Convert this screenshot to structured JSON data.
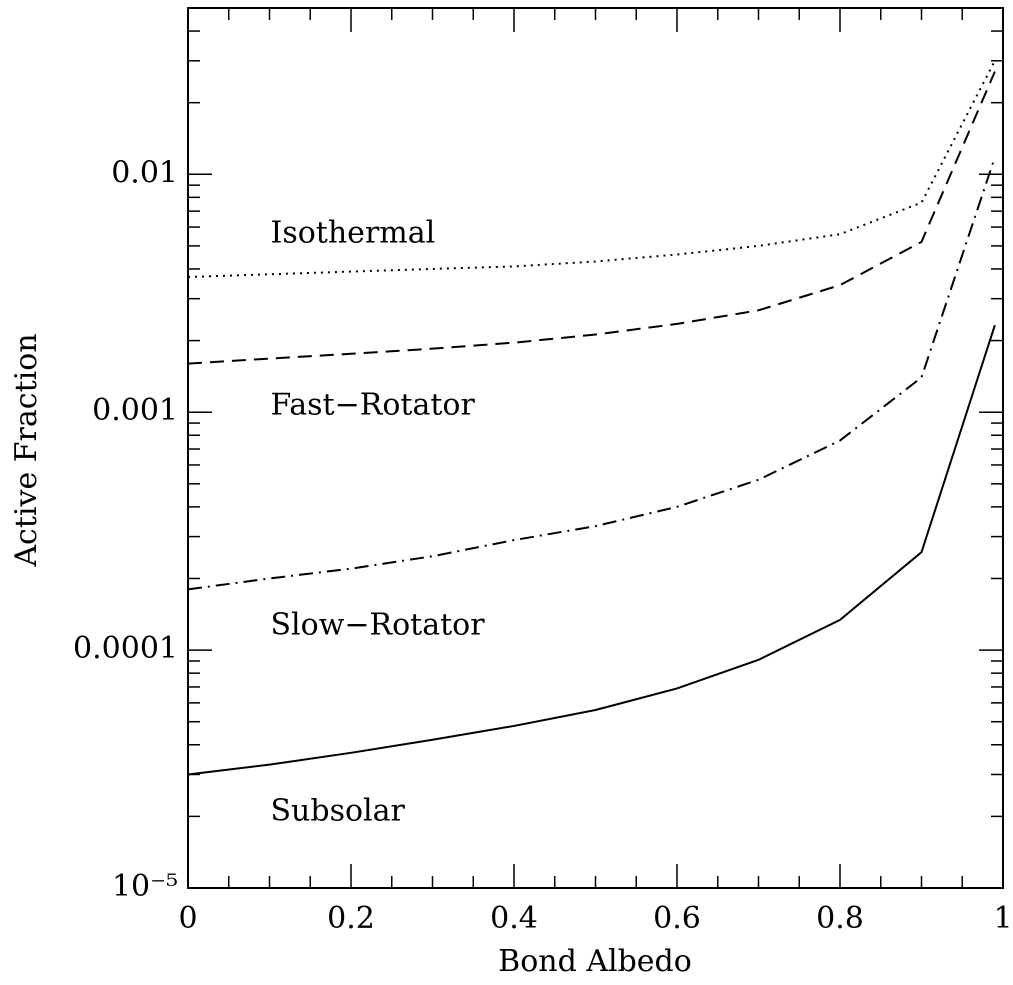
{
  "chart_data": {
    "type": "line",
    "xlabel": "Bond Albedo",
    "ylabel": "Active Fraction",
    "x": [
      0,
      0.1,
      0.2,
      0.3,
      0.4,
      0.5,
      0.6,
      0.7,
      0.8,
      0.9,
      0.99
    ],
    "series": [
      {
        "name": "Isothermal",
        "color": "#000000",
        "style": "dotted",
        "values": [
          0.0037,
          0.0038,
          0.0039,
          0.004,
          0.0041,
          0.0043,
          0.0046,
          0.005,
          0.0056,
          0.0076,
          0.03
        ]
      },
      {
        "name": "Fast−Rotator",
        "color": "#000000",
        "style": "dashed",
        "values": [
          0.0016,
          0.00168,
          0.00176,
          0.00185,
          0.00196,
          0.00212,
          0.00235,
          0.00268,
          0.00342,
          0.0052,
          0.027
        ]
      },
      {
        "name": "Slow−Rotator",
        "color": "#000000",
        "style": "dashdot",
        "values": [
          0.00018,
          0.0002,
          0.00022,
          0.000248,
          0.00029,
          0.000332,
          0.0004,
          0.00052,
          0.00076,
          0.0014,
          0.0118
        ]
      },
      {
        "name": "Subsolar",
        "color": "#000000",
        "style": "solid",
        "values": [
          3e-05,
          3.3e-05,
          3.7e-05,
          4.2e-05,
          4.8e-05,
          5.6e-05,
          6.9e-05,
          9.1e-05,
          0.000134,
          0.000258,
          0.00232
        ]
      }
    ],
    "xlim": [
      0,
      1
    ],
    "xticks": [
      0,
      0.2,
      0.4,
      0.6,
      0.8,
      1
    ],
    "ylim": [
      1e-05,
      0.05
    ],
    "yticks": [
      {
        "value": 1e-05,
        "label": "10⁻⁵"
      },
      0.0001,
      0.001,
      0.01
    ],
    "ylog": true,
    "grid": false
  }
}
